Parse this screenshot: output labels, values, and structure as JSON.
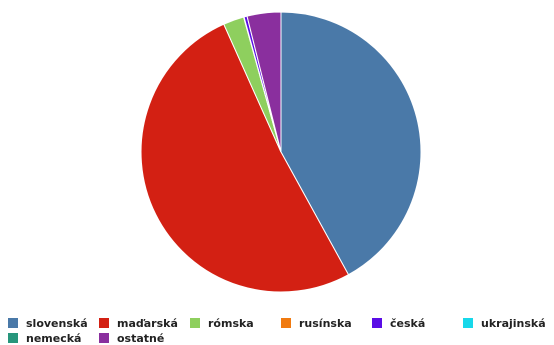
{
  "chart_data": {
    "type": "pie",
    "legend_position": "bottom",
    "slices": [
      {
        "label": "slovenská",
        "value": 42.0,
        "color": "#4a79a8"
      },
      {
        "label": "maďarská",
        "value": 51.3,
        "color": "#d32013"
      },
      {
        "label": "rómska",
        "value": 2.4,
        "color": "#8ecf5e"
      },
      {
        "label": "rusínska",
        "value": 0.05,
        "color": "#f07a10"
      },
      {
        "label": "česká",
        "value": 0.35,
        "color": "#5a0de6"
      },
      {
        "label": "ukrajinská",
        "value": 0.0,
        "color": "#17d8ea"
      },
      {
        "label": "nemecká",
        "value": 0.0,
        "color": "#27967c"
      },
      {
        "label": "ostatné",
        "value": 3.9,
        "color": "#8a2f9e"
      }
    ]
  }
}
